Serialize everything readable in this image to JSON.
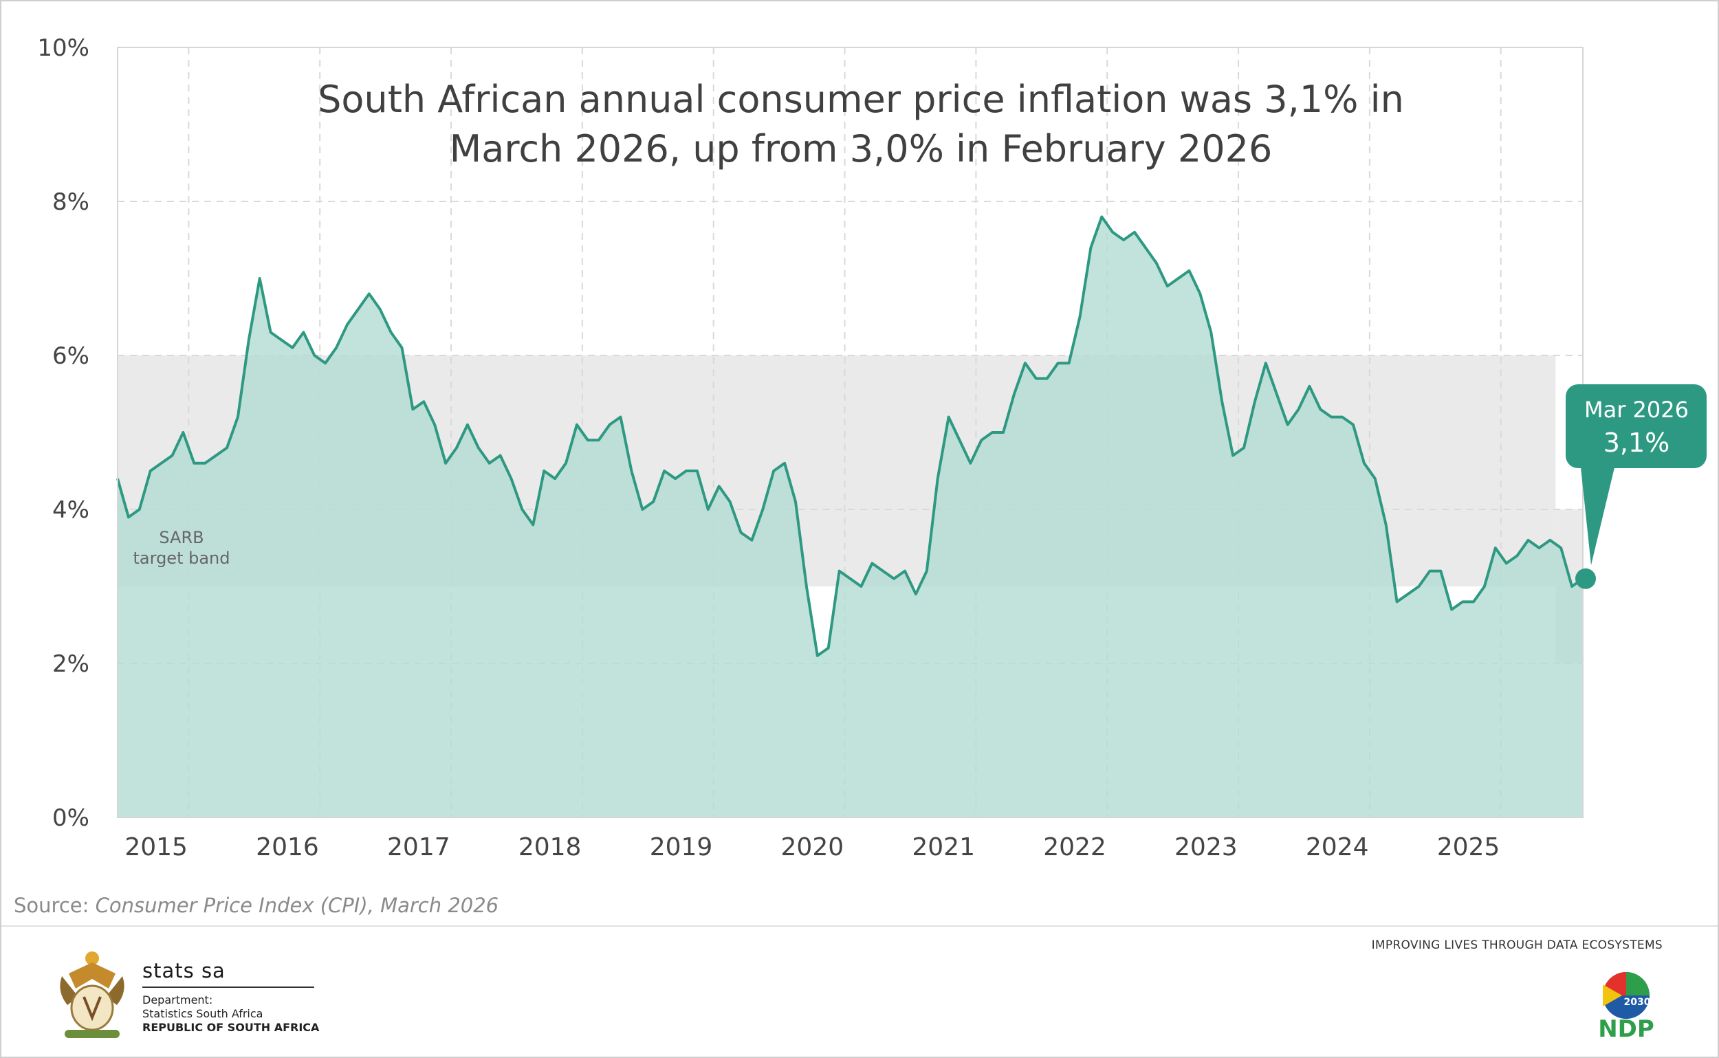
{
  "chart_data": {
    "type": "area",
    "title": "South African annual consumer price inflation was 3,1% in March 2026, up from 3,0% in February 2026",
    "title_lines": [
      "South African annual consumer price inflation was 3,1% in",
      "March 2026, up from 3,0% in February 2026"
    ],
    "ylim": [
      0,
      10
    ],
    "y_ticks": [
      "0%",
      "2%",
      "4%",
      "6%",
      "8%",
      "10%"
    ],
    "x_labels": [
      "2015",
      "2016",
      "2017",
      "2018",
      "2019",
      "2020",
      "2021",
      "2022",
      "2023",
      "2024",
      "2025"
    ],
    "grid": true,
    "series": [
      {
        "values": [
          4.4,
          3.9,
          4.0,
          4.5,
          4.6,
          4.7,
          5.0,
          4.6,
          4.6,
          4.7,
          4.8,
          5.2,
          6.2,
          7.0,
          6.3,
          6.2,
          6.1,
          6.3,
          6.0,
          5.9,
          6.1,
          6.4,
          6.6,
          6.8,
          6.6,
          6.3,
          6.1,
          5.3,
          5.4,
          5.1,
          4.6,
          4.8,
          5.1,
          4.8,
          4.6,
          4.7,
          4.4,
          4.0,
          3.8,
          4.5,
          4.4,
          4.6,
          5.1,
          4.9,
          4.9,
          5.1,
          5.2,
          4.5,
          4.0,
          4.1,
          4.5,
          4.4,
          4.5,
          4.5,
          4.0,
          4.3,
          4.1,
          3.7,
          3.6,
          4.0,
          4.5,
          4.6,
          4.1,
          3.0,
          2.1,
          2.2,
          3.2,
          3.1,
          3.0,
          3.3,
          3.2,
          3.1,
          3.2,
          2.9,
          3.2,
          4.4,
          5.2,
          4.9,
          4.6,
          4.9,
          5.0,
          5.0,
          5.5,
          5.9,
          5.7,
          5.7,
          5.9,
          5.9,
          6.5,
          7.4,
          7.8,
          7.6,
          7.5,
          7.6,
          7.4,
          7.2,
          6.9,
          7.0,
          7.1,
          6.8,
          6.3,
          5.4,
          4.7,
          4.8,
          5.4,
          5.9,
          5.5,
          5.1,
          5.3,
          5.6,
          5.3,
          5.2,
          5.2,
          5.1,
          4.6,
          4.4,
          3.8,
          2.8,
          2.9,
          3.0,
          3.2,
          3.2,
          2.7,
          2.8,
          2.8,
          3.0,
          3.5,
          3.3,
          3.4,
          3.6,
          3.5,
          3.6,
          3.5,
          3.0,
          3.1
        ]
      }
    ],
    "target_band": {
      "label_lines": [
        "SARB",
        "target band"
      ],
      "range": [
        3,
        6
      ],
      "new_range": [
        2,
        4
      ]
    },
    "callout": {
      "label": "Mar 2026",
      "value": "3,1%"
    }
  },
  "source": {
    "prefix": "Source: ",
    "text": "Consumer Price Index (CPI), March 2026"
  },
  "footer": {
    "org_name": "stats sa",
    "dept_line1": "Department:",
    "dept_line2": "Statistics South Africa",
    "dept_line3": "REPUBLIC OF SOUTH AFRICA",
    "tagline": "IMPROVING LIVES THROUGH DATA ECOSYSTEMS",
    "ndp_year": "2030",
    "ndp_label": "NDP"
  },
  "colors": {
    "line": "#2e9982",
    "area": "#b5ddd3",
    "band": "#eaeaea",
    "callout": "#2e9982",
    "grid": "#d9d9d9"
  }
}
